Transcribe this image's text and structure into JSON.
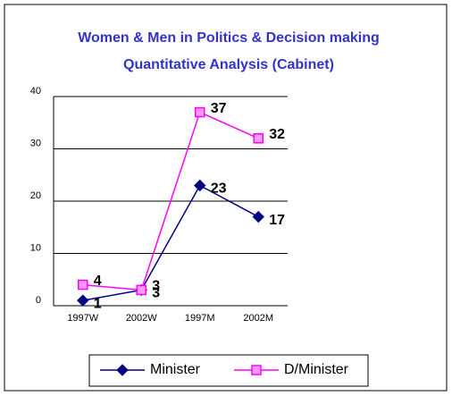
{
  "chart_data": {
    "type": "line",
    "title": "Women & Men in Politics & Decision making",
    "subtitle": "Quantitative Analysis (Cabinet)",
    "categories": [
      "1997W",
      "2002W",
      "1997M",
      "2002M"
    ],
    "series": [
      {
        "name": "Minister",
        "color": "#000080",
        "values": [
          1,
          3,
          23,
          17
        ]
      },
      {
        "name": "D/Minister",
        "color": "#ff00ff",
        "values": [
          4,
          3,
          37,
          32
        ]
      }
    ],
    "ylim": [
      0,
      40
    ],
    "yticks": [
      0,
      10,
      20,
      30,
      40
    ],
    "grid": true,
    "legend": "bottom"
  }
}
